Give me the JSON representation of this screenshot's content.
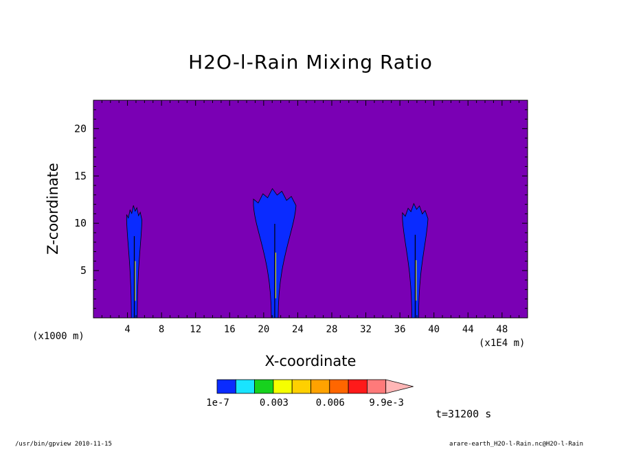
{
  "title": "H2O-l-Rain Mixing Ratio",
  "chart_data": {
    "type": "contour",
    "title": "H2O-l-Rain Mixing Ratio",
    "xlabel": "X-coordinate",
    "ylabel": "Z-coordinate",
    "x_unit_left": "(x1000 m)",
    "x_unit_right": "(x1E4 m)",
    "xlim": [
      0,
      51
    ],
    "ylim": [
      0,
      23
    ],
    "x_ticks": [
      4,
      8,
      12,
      16,
      20,
      24,
      28,
      32,
      36,
      40,
      44,
      48
    ],
    "y_ticks": [
      5,
      10,
      15,
      20
    ],
    "background_color": "#7a00b4",
    "plumes": [
      {
        "center_x": 4.8,
        "top_z": 12.0,
        "half_width_top": 0.9,
        "half_width_base": 0.35
      },
      {
        "center_x": 21.3,
        "top_z": 13.8,
        "half_width_top": 2.5,
        "half_width_base": 0.4
      },
      {
        "center_x": 37.8,
        "top_z": 12.2,
        "half_width_top": 1.5,
        "half_width_base": 0.4
      }
    ],
    "colorbar": {
      "colors": [
        "#0a2bff",
        "#19e4ff",
        "#17d21e",
        "#f5ff00",
        "#ffd000",
        "#ffa200",
        "#ff6600",
        "#ff1a1a",
        "#ff7a7a",
        "#ffb6b6"
      ],
      "labels": [
        "1e-7",
        "0.003",
        "0.006",
        "9.9e-3"
      ]
    }
  },
  "time_label": "t=31200 s",
  "footer_left": "/usr/bin/gpview  2010-11-15",
  "footer_right": "arare-earth_H2O-l-Rain.nc@H2O-l-Rain"
}
